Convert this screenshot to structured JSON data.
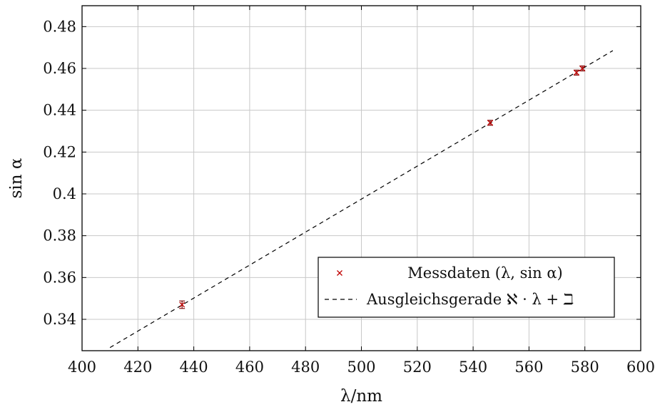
{
  "chart_data": {
    "type": "scatter",
    "xlabel": "λ/nm",
    "ylabel": "sin α",
    "xlim": [
      400,
      600
    ],
    "ylim": [
      0.325,
      0.49
    ],
    "x_ticks": [
      400,
      420,
      440,
      460,
      480,
      500,
      520,
      540,
      560,
      580,
      600
    ],
    "y_ticks": [
      0.34,
      0.36,
      0.38,
      0.4,
      0.42,
      0.44,
      0.46,
      0.48
    ],
    "y_tick_labels": [
      "0.34",
      "0.36",
      "0.38",
      "0.4",
      "0.42",
      "0.44",
      "0.46",
      "0.48"
    ],
    "grid": true,
    "legend_position": "bottom-right",
    "series": [
      {
        "name": "Messdaten (λ, sin α)",
        "kind": "points",
        "color": "#c00000",
        "x": [
          435.8,
          546.1,
          577.0,
          579.1
        ],
        "y": [
          0.347,
          0.434,
          0.458,
          0.46
        ],
        "yerr": [
          0.0018,
          0.0012,
          0.0012,
          0.0012
        ]
      },
      {
        "name": "Ausgleichsgerade ℵ · λ + ℶ",
        "kind": "line",
        "color": "#000000",
        "dashed": true,
        "x": [
          410,
          590
        ],
        "y": [
          0.3265,
          0.4685
        ]
      }
    ]
  }
}
